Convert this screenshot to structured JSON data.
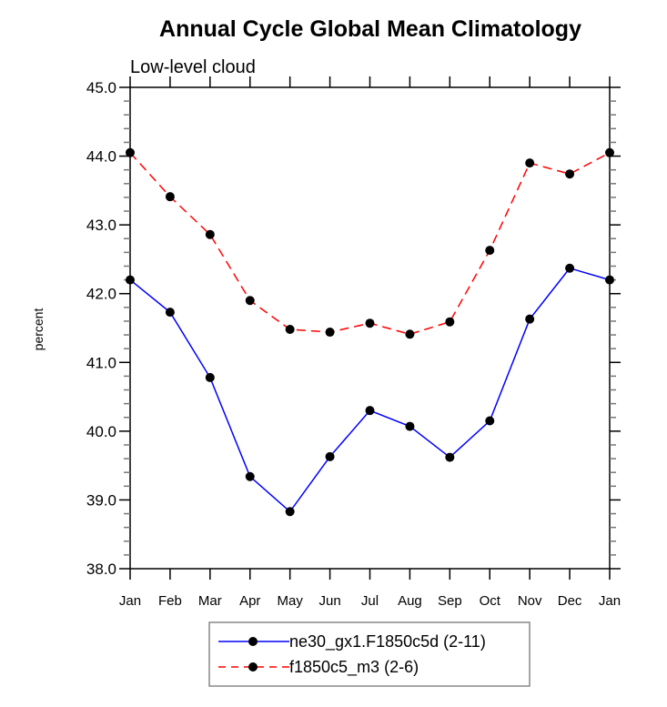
{
  "chart_data": {
    "type": "line",
    "title": "Annual Cycle Global Mean Climatology",
    "subtitle": "Low-level cloud",
    "xlabel": "",
    "ylabel": "percent",
    "categories": [
      "Jan",
      "Feb",
      "Mar",
      "Apr",
      "May",
      "Jun",
      "Jul",
      "Aug",
      "Sep",
      "Oct",
      "Nov",
      "Dec",
      "Jan"
    ],
    "ylim": [
      38.0,
      45.0
    ],
    "yticks": [
      "38.0",
      "39.0",
      "40.0",
      "41.0",
      "42.0",
      "43.0",
      "44.0",
      "45.0"
    ],
    "grid": false,
    "legend_position": "bottom-center",
    "series": [
      {
        "name": "ne30_gx1.F1850c5d (2-11)",
        "color": "#0000ff",
        "style": "solid",
        "marker": "filled-circle",
        "values": [
          42.2,
          41.73,
          40.78,
          39.34,
          38.83,
          39.63,
          40.3,
          40.07,
          39.62,
          40.15,
          41.63,
          42.37,
          42.2
        ]
      },
      {
        "name": "f1850c5_m3 (2-6)",
        "color": "#ff0000",
        "style": "dashed",
        "marker": "filled-circle",
        "values": [
          44.05,
          43.41,
          42.86,
          41.9,
          41.48,
          41.44,
          41.57,
          41.41,
          41.59,
          42.63,
          43.9,
          43.74,
          44.05
        ]
      }
    ]
  }
}
